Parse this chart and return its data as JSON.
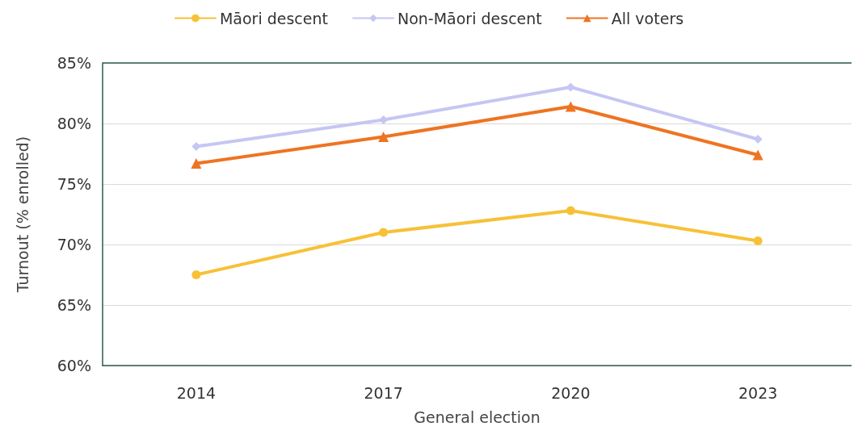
{
  "chart_data": {
    "type": "line",
    "xlabel": "General election",
    "ylabel": "Turnout (% enrolled)",
    "categories": [
      "2014",
      "2017",
      "2020",
      "2023"
    ],
    "series": [
      {
        "name": "Māori descent",
        "color": "#f7c137",
        "marker": "circle",
        "values": [
          67.5,
          71.0,
          72.8,
          70.3
        ]
      },
      {
        "name": "Non-Māori descent",
        "color": "#c6c6f4",
        "marker": "diamond",
        "values": [
          78.1,
          80.3,
          83.0,
          78.7
        ]
      },
      {
        "name": "All voters",
        "color": "#ee7422",
        "marker": "triangle",
        "values": [
          76.7,
          78.9,
          81.4,
          77.4
        ]
      }
    ],
    "ylim": [
      60,
      85
    ],
    "yticks": [
      {
        "value": 60,
        "label": "60%"
      },
      {
        "value": 65,
        "label": "65%"
      },
      {
        "value": 70,
        "label": "70%"
      },
      {
        "value": 75,
        "label": "75%"
      },
      {
        "value": 80,
        "label": "80%"
      },
      {
        "value": 85,
        "label": "85%"
      }
    ],
    "grid": "y",
    "legend": "top",
    "line_style": "solid"
  }
}
